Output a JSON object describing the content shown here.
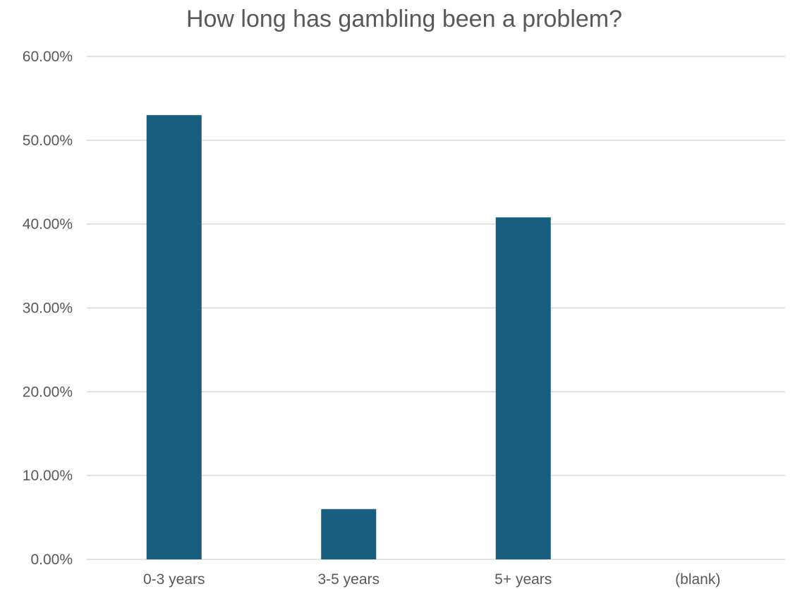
{
  "chart_data": {
    "type": "bar",
    "title": "How long has gambling been a problem?",
    "xlabel": "",
    "ylabel": "",
    "categories": [
      "0-3 years",
      "3-5 years",
      "5+ years",
      "(blank)"
    ],
    "values": [
      53.0,
      6.0,
      40.8,
      0
    ],
    "ylim": [
      0,
      60
    ],
    "yticks": [
      "0.00%",
      "10.00%",
      "20.00%",
      "30.00%",
      "40.00%",
      "50.00%",
      "60.00%"
    ],
    "grid": true,
    "legend": "none",
    "colors": {
      "bar": "#175e7f",
      "grid": "#d9d9d9",
      "text": "#595959"
    }
  }
}
